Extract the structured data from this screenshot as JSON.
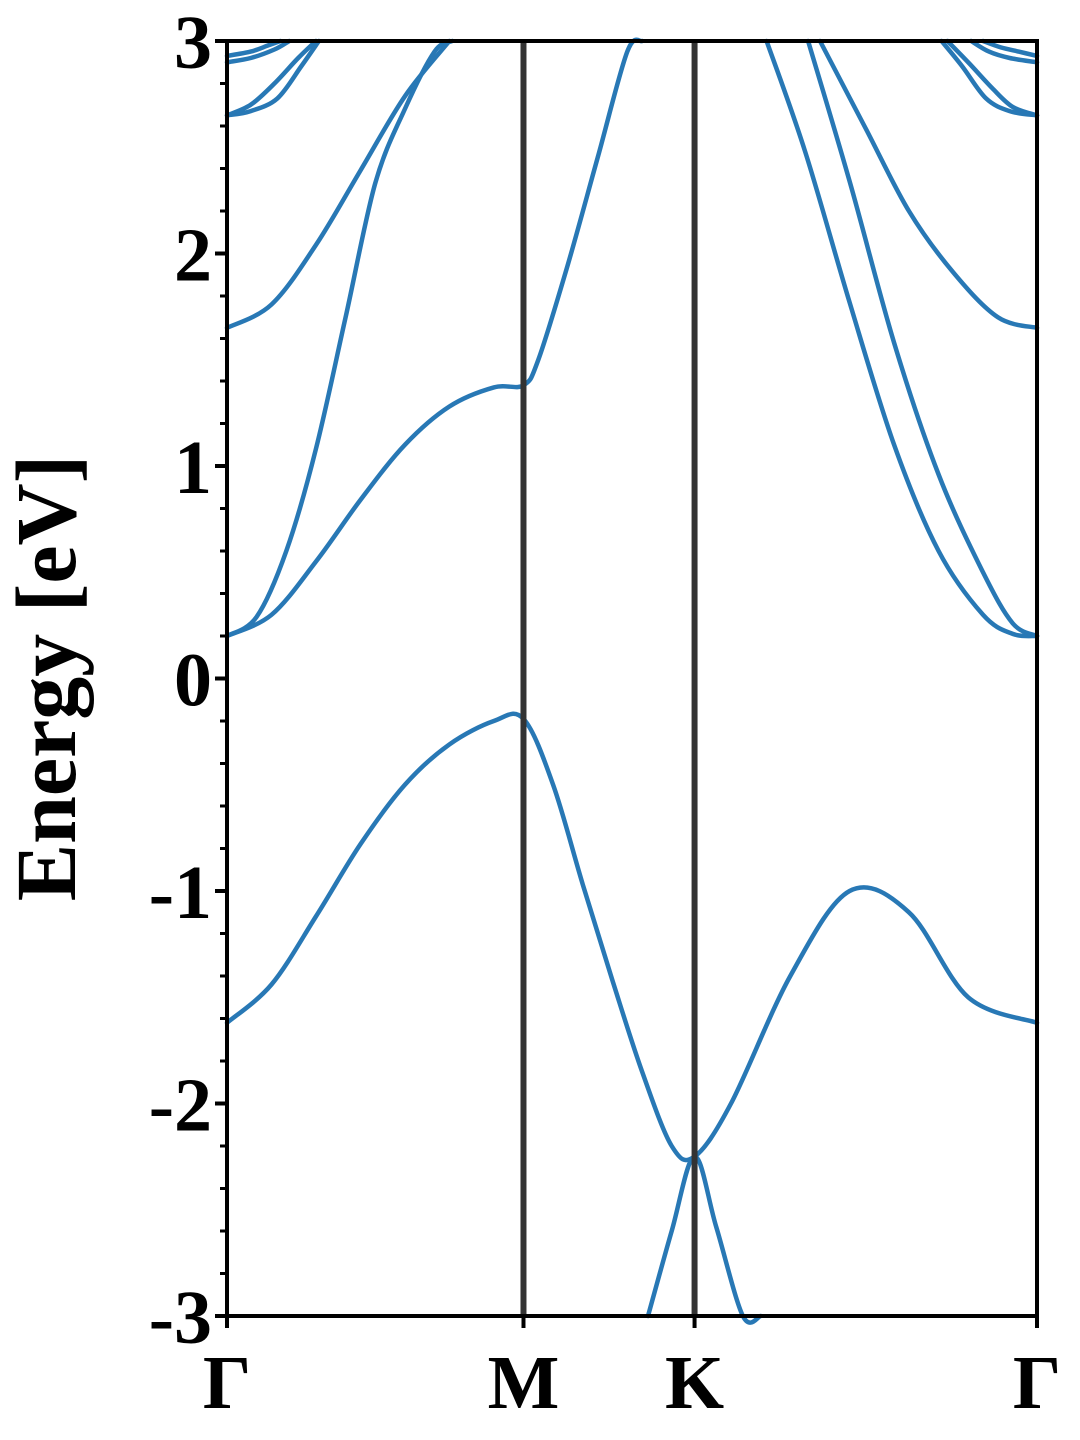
{
  "chart_data": {
    "type": "line",
    "title": "",
    "xlabel": "",
    "ylabel": "Energy [eV]",
    "ylim": [
      -3,
      3
    ],
    "grid": false,
    "line_color": "#2878b5",
    "divider_color": "#333333",
    "yticks": [
      {
        "value": 3,
        "label": "3"
      },
      {
        "value": 2,
        "label": "2"
      },
      {
        "value": 1,
        "label": "1"
      },
      {
        "value": 0,
        "label": "0"
      },
      {
        "value": -1,
        "label": "-1"
      },
      {
        "value": -2,
        "label": "-2"
      },
      {
        "value": -3,
        "label": "-3"
      }
    ],
    "kpoints": [
      {
        "label": "Γ",
        "x": 0
      },
      {
        "label": "M",
        "x": 1
      },
      {
        "label": "K",
        "x": 1.577
      },
      {
        "label": "Γ",
        "x": 2.732
      }
    ],
    "series": [
      {
        "x": [
          0,
          0.15,
          0.3,
          0.45,
          0.6,
          0.75,
          0.9,
          1.0,
          1.1,
          1.2,
          1.3,
          1.4,
          1.5,
          1.577,
          1.7,
          1.9,
          2.1,
          2.3,
          2.5,
          2.732
        ],
        "y": [
          -1.62,
          -1.44,
          -1.12,
          -0.78,
          -0.5,
          -0.31,
          -0.2,
          -0.19,
          -0.5,
          -0.97,
          -1.42,
          -1.85,
          -2.2,
          -2.25,
          -2.0,
          -1.4,
          -1.0,
          -1.1,
          -1.5,
          -1.62
        ]
      },
      {
        "x": [
          0,
          0.15,
          0.3,
          0.45,
          0.6,
          0.75,
          0.9,
          1.0,
          1.05,
          1.15,
          1.25,
          1.35,
          1.4,
          1.42,
          1.5,
          1.577,
          1.65,
          1.74,
          1.8
        ],
        "y": [
          0.2,
          0.3,
          0.55,
          0.84,
          1.1,
          1.28,
          1.37,
          1.38,
          1.5,
          1.95,
          2.45,
          2.95,
          3.0,
          -3.0,
          -2.6,
          -2.25,
          -2.58,
          -3.0,
          -3.0
        ]
      },
      {
        "x": [
          0,
          0.1,
          0.2,
          0.3,
          0.4,
          0.5,
          0.6,
          0.7,
          0.76
        ],
        "y": [
          0.2,
          0.29,
          0.6,
          1.08,
          1.7,
          2.33,
          2.68,
          2.95,
          3.0
        ]
      },
      {
        "x": [
          0,
          0.15,
          0.3,
          0.45,
          0.6,
          0.75
        ],
        "y": [
          1.65,
          1.76,
          2.04,
          2.39,
          2.74,
          3.0
        ]
      },
      {
        "x": [
          1.82,
          1.95,
          2.1,
          2.25,
          2.4,
          2.55,
          2.65,
          2.732
        ],
        "y": [
          3.0,
          2.48,
          1.77,
          1.1,
          0.6,
          0.3,
          0.21,
          0.2
        ]
      },
      {
        "x": [
          1.96,
          2.1,
          2.25,
          2.4,
          2.55,
          2.65,
          2.732
        ],
        "y": [
          3.0,
          2.34,
          1.58,
          0.96,
          0.5,
          0.26,
          0.2
        ]
      },
      {
        "x": [
          2.0,
          2.15,
          2.3,
          2.45,
          2.6,
          2.732
        ],
        "y": [
          3.0,
          2.6,
          2.2,
          1.91,
          1.7,
          1.65
        ]
      },
      {
        "x": [
          0,
          0.08,
          0.17,
          0.25,
          0.31
        ],
        "y": [
          2.65,
          2.67,
          2.73,
          2.88,
          3.0
        ]
      },
      {
        "x": [
          0,
          0.08,
          0.16,
          0.24,
          0.3
        ],
        "y": [
          2.65,
          2.7,
          2.8,
          2.92,
          3.0
        ]
      },
      {
        "x": [
          0,
          0.08,
          0.16,
          0.21
        ],
        "y": [
          2.9,
          2.92,
          2.96,
          3.0
        ]
      },
      {
        "x": [
          0,
          0.08,
          0.14,
          0.18
        ],
        "y": [
          2.93,
          2.95,
          2.98,
          3.0
        ]
      },
      {
        "x": [
          2.41,
          2.48,
          2.56,
          2.64,
          2.732
        ],
        "y": [
          3.0,
          2.88,
          2.73,
          2.67,
          2.65
        ]
      },
      {
        "x": [
          2.43,
          2.5,
          2.58,
          2.65,
          2.732
        ],
        "y": [
          3.0,
          2.9,
          2.78,
          2.69,
          2.65
        ]
      },
      {
        "x": [
          2.51,
          2.57,
          2.64,
          2.732
        ],
        "y": [
          3.0,
          2.95,
          2.92,
          2.9
        ]
      },
      {
        "x": [
          2.55,
          2.61,
          2.67,
          2.732
        ],
        "y": [
          3.0,
          2.97,
          2.95,
          2.93
        ]
      }
    ]
  }
}
